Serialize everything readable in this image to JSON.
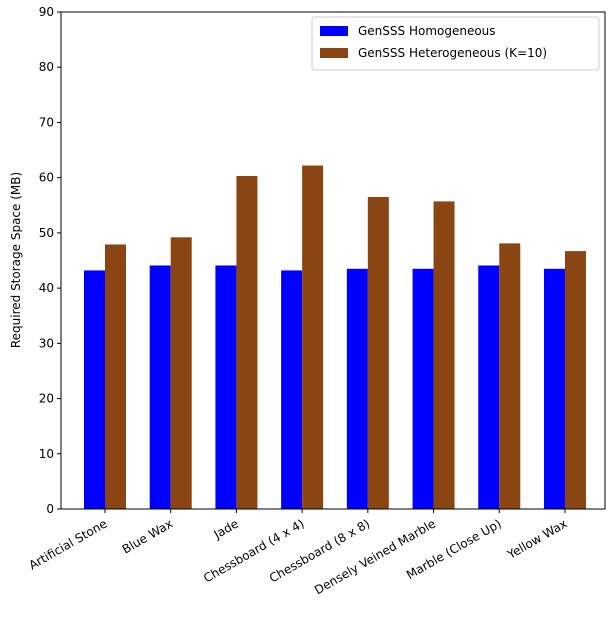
{
  "chart_data": {
    "type": "bar",
    "title": "",
    "xlabel": "",
    "ylabel": "Required Storage Space (MB)",
    "categories": [
      "Artificial Stone",
      "Blue Wax",
      "Jade",
      "Chessboard (4 x 4)",
      "Chessboard (8 x 8)",
      "Densely Veined Marble",
      "Marble (Close Up)",
      "Yellow Wax"
    ],
    "series": [
      {
        "name": "GenSSS Homogeneous",
        "color": "#0000ff",
        "values": [
          43.2,
          44.1,
          44.1,
          43.2,
          43.5,
          43.5,
          44.1,
          43.5
        ]
      },
      {
        "name": "GenSSS Heterogeneous (K=10)",
        "color": "#8b4513",
        "values": [
          47.9,
          49.2,
          60.3,
          62.2,
          56.5,
          55.7,
          48.1,
          46.7
        ]
      }
    ],
    "ylim": [
      0,
      90
    ],
    "yticks": [
      0,
      10,
      20,
      30,
      40,
      50,
      60,
      70,
      80,
      90
    ],
    "grid": false,
    "legend_position": "top-right"
  }
}
